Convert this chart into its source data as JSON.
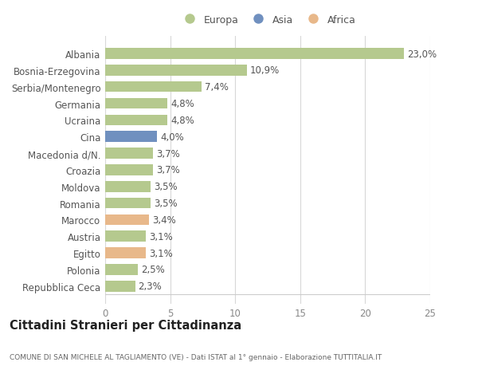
{
  "categories": [
    "Repubblica Ceca",
    "Polonia",
    "Egitto",
    "Austria",
    "Marocco",
    "Romania",
    "Moldova",
    "Croazia",
    "Macedonia d/N.",
    "Cina",
    "Ucraina",
    "Germania",
    "Serbia/Montenegro",
    "Bosnia-Erzegovina",
    "Albania"
  ],
  "values": [
    2.3,
    2.5,
    3.1,
    3.1,
    3.4,
    3.5,
    3.5,
    3.7,
    3.7,
    4.0,
    4.8,
    4.8,
    7.4,
    10.9,
    23.0
  ],
  "colors": [
    "#b5c98e",
    "#b5c98e",
    "#e8b88a",
    "#b5c98e",
    "#e8b88a",
    "#b5c98e",
    "#b5c98e",
    "#b5c98e",
    "#b5c98e",
    "#7090bf",
    "#b5c98e",
    "#b5c98e",
    "#b5c98e",
    "#b5c98e",
    "#b5c98e"
  ],
  "labels": [
    "2,3%",
    "2,5%",
    "3,1%",
    "3,1%",
    "3,4%",
    "3,5%",
    "3,5%",
    "3,7%",
    "3,7%",
    "4,0%",
    "4,8%",
    "4,8%",
    "7,4%",
    "10,9%",
    "23,0%"
  ],
  "xlim": [
    0,
    25
  ],
  "xticks": [
    0,
    5,
    10,
    15,
    20,
    25
  ],
  "title": "Cittadini Stranieri per Cittadinanza",
  "subtitle": "COMUNE DI SAN MICHELE AL TAGLIAMENTO (VE) - Dati ISTAT al 1° gennaio - Elaborazione TUTTITALIA.IT",
  "legend_europa_color": "#b5c98e",
  "legend_asia_color": "#7090bf",
  "legend_africa_color": "#e8b88a",
  "background_color": "#ffffff",
  "grid_color": "#d8d8d8",
  "bar_height": 0.65,
  "label_fontsize": 8.5,
  "ytick_fontsize": 8.5,
  "xtick_fontsize": 8.5
}
